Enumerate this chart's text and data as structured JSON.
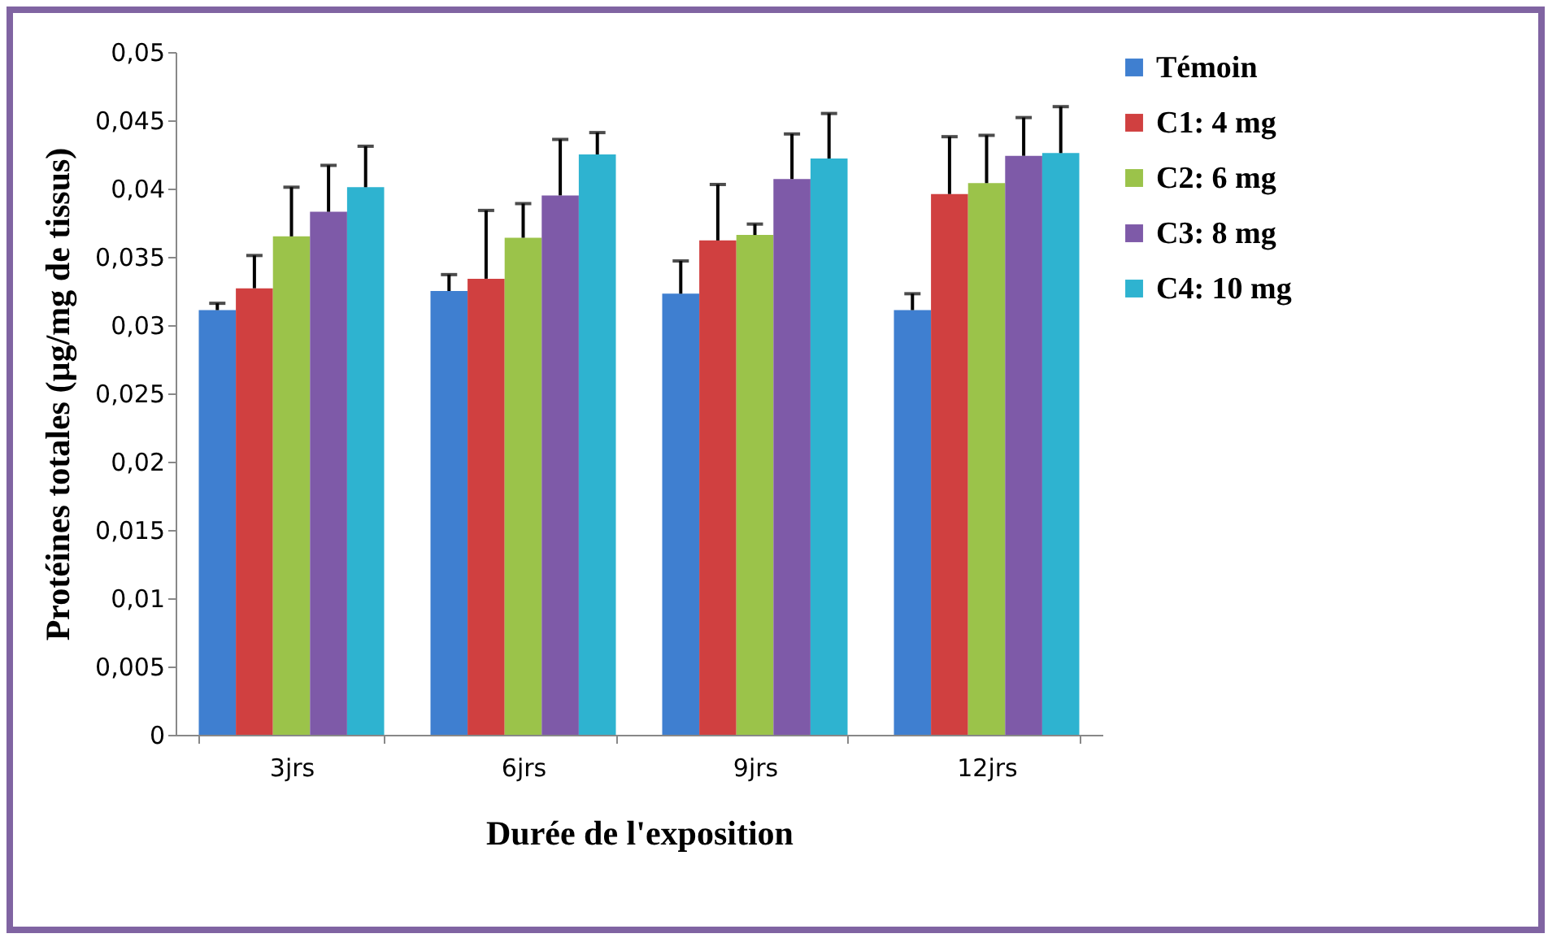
{
  "chart_data": {
    "type": "bar",
    "xlabel": "Durée de l'exposition",
    "ylabel": "Protéines totales (µg/mg de tissus)",
    "categories": [
      "3jrs",
      "6jrs",
      "9jrs",
      "12jrs"
    ],
    "ylim": [
      0,
      0.05
    ],
    "yticks": [
      {
        "value": 0,
        "label": "0"
      },
      {
        "value": 0.005,
        "label": "0,005"
      },
      {
        "value": 0.01,
        "label": "0,01"
      },
      {
        "value": 0.015,
        "label": "0,015"
      },
      {
        "value": 0.02,
        "label": "0,02"
      },
      {
        "value": 0.025,
        "label": "0,025"
      },
      {
        "value": 0.03,
        "label": "0,03"
      },
      {
        "value": 0.035,
        "label": "0,035"
      },
      {
        "value": 0.04,
        "label": "0,04"
      },
      {
        "value": 0.045,
        "label": "0,045"
      },
      {
        "value": 0.05,
        "label": "0,05"
      }
    ],
    "legend": "right",
    "grid": false,
    "series": [
      {
        "name": "Témoin",
        "color": "#3f7fd0",
        "values": [
          0.0311,
          0.0325,
          0.0323,
          0.0311
        ],
        "errors": [
          [
            0.0311,
            0.0316
          ],
          [
            0.0325,
            0.0337
          ],
          [
            0.0323,
            0.0347
          ],
          [
            0.0311,
            0.0323
          ]
        ]
      },
      {
        "name": "C1: 4 mg",
        "color": "#d04040",
        "values": [
          0.0327,
          0.0334,
          0.0362,
          0.0396
        ],
        "errors": [
          [
            0.0327,
            0.0351
          ],
          [
            0.0334,
            0.0384
          ],
          [
            0.0362,
            0.0403
          ],
          [
            0.0396,
            0.0438
          ]
        ]
      },
      {
        "name": "C2: 6 mg",
        "color": "#9bc34a",
        "values": [
          0.0365,
          0.0364,
          0.0366,
          0.0404
        ],
        "errors": [
          [
            0.0365,
            0.0401
          ],
          [
            0.0364,
            0.0389
          ],
          [
            0.0366,
            0.0374
          ],
          [
            0.0404,
            0.0439
          ]
        ]
      },
      {
        "name": "C3: 8 mg",
        "color": "#7e5aa8",
        "values": [
          0.0383,
          0.0395,
          0.0407,
          0.0424
        ],
        "errors": [
          [
            0.0383,
            0.0417
          ],
          [
            0.0395,
            0.0436
          ],
          [
            0.0407,
            0.044
          ],
          [
            0.0424,
            0.0452
          ]
        ]
      },
      {
        "name": "C4: 10 mg",
        "color": "#2eb3d0",
        "values": [
          0.0401,
          0.0425,
          0.0422,
          0.0426
        ],
        "errors": [
          [
            0.0401,
            0.0431
          ],
          [
            0.0425,
            0.0441
          ],
          [
            0.0422,
            0.0455
          ],
          [
            0.0426,
            0.046
          ]
        ]
      }
    ]
  }
}
